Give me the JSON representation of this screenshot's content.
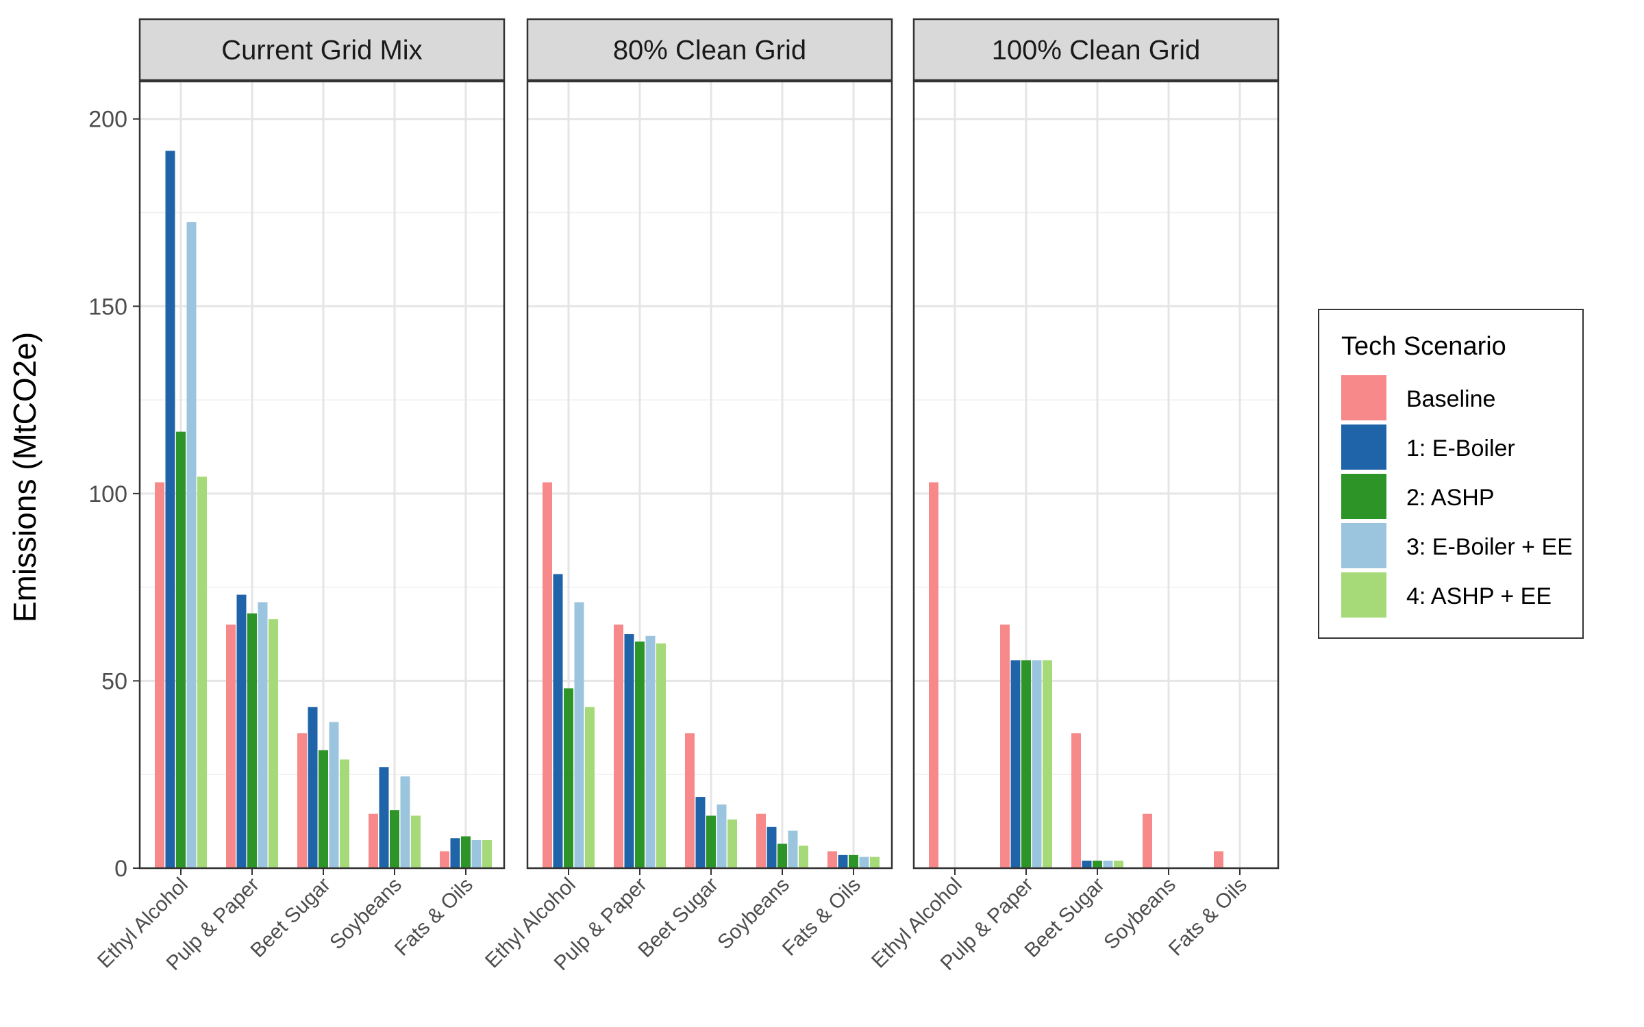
{
  "chart_data": {
    "type": "bar",
    "ylabel": "Emissions (MtCO2e)",
    "ylim": [
      0,
      210
    ],
    "yticks": [
      0,
      50,
      100,
      150,
      200
    ],
    "grid": true,
    "legend": {
      "title": "Tech Scenario",
      "placement": "right"
    },
    "categories": [
      "Ethyl Alcohol",
      "Pulp & Paper",
      "Beet Sugar",
      "Soybeans",
      "Fats & Oils"
    ],
    "series": [
      {
        "name": "Baseline",
        "color": "#f8898a"
      },
      {
        "name": "1: E-Boiler",
        "color": "#1f64a8"
      },
      {
        "name": "2: ASHP",
        "color": "#2d9428"
      },
      {
        "name": "3: E-Boiler + EE",
        "color": "#9bc5de"
      },
      {
        "name": "4: ASHP + EE",
        "color": "#a6da78"
      }
    ],
    "panels": [
      {
        "title": "Current Grid Mix",
        "values": [
          [
            103,
            65,
            36,
            14.5,
            4.5
          ],
          [
            191.5,
            73,
            43,
            27,
            8
          ],
          [
            116.5,
            68,
            31.5,
            15.5,
            8.5
          ],
          [
            172.5,
            71,
            39,
            24.5,
            7.5
          ],
          [
            104.5,
            66.5,
            29,
            14,
            7.5
          ]
        ]
      },
      {
        "title": "80% Clean Grid",
        "values": [
          [
            103,
            65,
            36,
            14.5,
            4.5
          ],
          [
            78.5,
            62.5,
            19,
            11,
            3.5
          ],
          [
            48,
            60.5,
            14,
            6.5,
            3.5
          ],
          [
            71,
            62,
            17,
            10,
            3
          ],
          [
            43,
            60,
            13,
            6,
            3
          ]
        ]
      },
      {
        "title": "100% Clean Grid",
        "values": [
          [
            103,
            65,
            36,
            14.5,
            4.5
          ],
          [
            0,
            55.5,
            2,
            0,
            0
          ],
          [
            0,
            55.5,
            2,
            0,
            0
          ],
          [
            0,
            55.5,
            2,
            0,
            0
          ],
          [
            0,
            55.5,
            2,
            0,
            0
          ]
        ]
      }
    ]
  }
}
